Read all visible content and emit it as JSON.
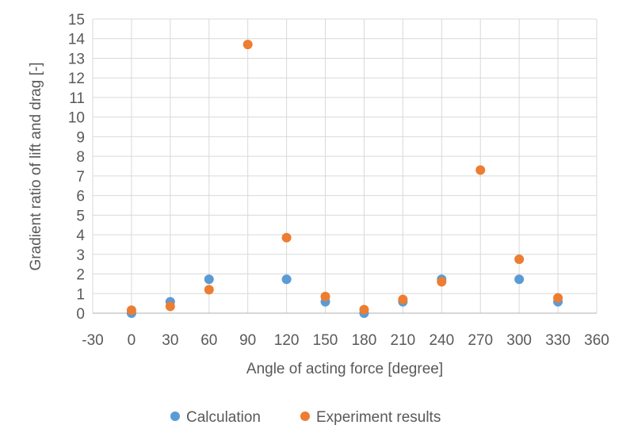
{
  "chart_data": {
    "type": "scatter",
    "title": "",
    "xlabel": "Angle of acting force [degree]",
    "ylabel": "Gradient ratio of lift and drag [-]",
    "xlim": [
      -30,
      360
    ],
    "ylim": [
      0,
      15
    ],
    "x_ticks": [
      -30,
      0,
      30,
      60,
      90,
      120,
      150,
      180,
      210,
      240,
      270,
      300,
      330,
      360
    ],
    "y_ticks": [
      0,
      1,
      2,
      3,
      4,
      5,
      6,
      7,
      8,
      9,
      10,
      11,
      12,
      13,
      14,
      15
    ],
    "grid": true,
    "legend_position": "bottom",
    "series": [
      {
        "name": "Calculation",
        "color": "#5B9BD5",
        "points": [
          {
            "x": 0,
            "y": 0.0
          },
          {
            "x": 30,
            "y": 0.58
          },
          {
            "x": 60,
            "y": 1.73
          },
          {
            "x": 120,
            "y": 1.73
          },
          {
            "x": 150,
            "y": 0.58
          },
          {
            "x": 180,
            "y": 0.0
          },
          {
            "x": 210,
            "y": 0.58
          },
          {
            "x": 240,
            "y": 1.73
          },
          {
            "x": 300,
            "y": 1.73
          },
          {
            "x": 330,
            "y": 0.58
          }
        ]
      },
      {
        "name": "Experiment results",
        "color": "#ED7D31",
        "points": [
          {
            "x": 0,
            "y": 0.15
          },
          {
            "x": 30,
            "y": 0.35
          },
          {
            "x": 60,
            "y": 1.2
          },
          {
            "x": 90,
            "y": 13.7
          },
          {
            "x": 120,
            "y": 3.85
          },
          {
            "x": 150,
            "y": 0.85
          },
          {
            "x": 180,
            "y": 0.18
          },
          {
            "x": 210,
            "y": 0.7
          },
          {
            "x": 240,
            "y": 1.6
          },
          {
            "x": 270,
            "y": 7.3
          },
          {
            "x": 300,
            "y": 2.75
          },
          {
            "x": 330,
            "y": 0.78
          }
        ]
      }
    ]
  }
}
